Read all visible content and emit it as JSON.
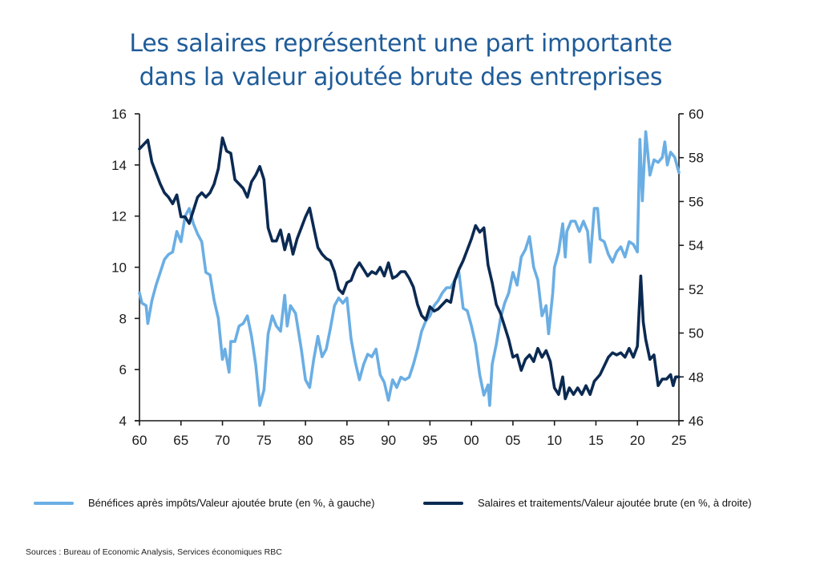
{
  "title_lines": [
    "Les salaires représentent une part importante",
    "dans la valeur ajoutée brute des entreprises"
  ],
  "source": "Sources : Bureau of Economic Analysis, Services économiques RBC",
  "colors": {
    "profits": "#6aaee4",
    "wages": "#0b2a52",
    "title": "#1f5c99"
  },
  "chart_data": {
    "type": "line",
    "title": "Les salaires représentent une part importante dans la valeur ajoutée brute des entreprises",
    "xlabel": "",
    "x_range": [
      1960,
      2025
    ],
    "x_ticks": [
      1960,
      1965,
      1970,
      1975,
      1980,
      1985,
      1990,
      1995,
      2000,
      2005,
      2010,
      2015,
      2020,
      2025
    ],
    "x_tick_labels": [
      "60",
      "65",
      "70",
      "75",
      "80",
      "85",
      "90",
      "95",
      "00",
      "05",
      "10",
      "15",
      "20",
      "25"
    ],
    "y_left": {
      "label": "en %",
      "range": [
        4,
        16
      ],
      "ticks": [
        4,
        6,
        8,
        10,
        12,
        14,
        16
      ]
    },
    "y_right": {
      "label": "en %",
      "range": [
        46,
        60
      ],
      "ticks": [
        46,
        48,
        50,
        52,
        54,
        56,
        58,
        60
      ]
    },
    "grid": false,
    "legend_position": "bottom",
    "series": [
      {
        "name": "Bénéfices après impôts/Valeur ajoutée brute (en %, à gauche)",
        "axis": "left",
        "color": "#6aaee4",
        "points": [
          [
            1960,
            9.0
          ],
          [
            1960.3,
            8.6
          ],
          [
            1960.8,
            8.5
          ],
          [
            1961,
            7.8
          ],
          [
            1961.5,
            8.7
          ],
          [
            1962,
            9.3
          ],
          [
            1962.5,
            9.8
          ],
          [
            1963,
            10.3
          ],
          [
            1963.5,
            10.5
          ],
          [
            1964,
            10.6
          ],
          [
            1964.5,
            11.4
          ],
          [
            1965,
            11.0
          ],
          [
            1965.5,
            12.0
          ],
          [
            1966,
            12.3
          ],
          [
            1966.5,
            11.7
          ],
          [
            1967,
            11.3
          ],
          [
            1967.5,
            11.0
          ],
          [
            1968,
            9.8
          ],
          [
            1968.5,
            9.7
          ],
          [
            1969,
            8.7
          ],
          [
            1969.5,
            8.0
          ],
          [
            1970,
            6.4
          ],
          [
            1970.3,
            6.8
          ],
          [
            1970.8,
            5.9
          ],
          [
            1971,
            7.1
          ],
          [
            1971.5,
            7.1
          ],
          [
            1972,
            7.7
          ],
          [
            1972.5,
            7.8
          ],
          [
            1973,
            8.1
          ],
          [
            1973.5,
            7.3
          ],
          [
            1974,
            6.2
          ],
          [
            1974.5,
            4.6
          ],
          [
            1975,
            5.2
          ],
          [
            1975.5,
            7.4
          ],
          [
            1976,
            8.1
          ],
          [
            1976.5,
            7.7
          ],
          [
            1977,
            7.5
          ],
          [
            1977.5,
            8.9
          ],
          [
            1977.8,
            7.7
          ],
          [
            1978.2,
            8.5
          ],
          [
            1978.8,
            8.2
          ],
          [
            1979.5,
            6.8
          ],
          [
            1980,
            5.6
          ],
          [
            1980.5,
            5.3
          ],
          [
            1981,
            6.4
          ],
          [
            1981.5,
            7.3
          ],
          [
            1982,
            6.5
          ],
          [
            1982.5,
            6.8
          ],
          [
            1983,
            7.6
          ],
          [
            1983.5,
            8.5
          ],
          [
            1984,
            8.8
          ],
          [
            1984.5,
            8.6
          ],
          [
            1985,
            8.8
          ],
          [
            1985.5,
            7.2
          ],
          [
            1986,
            6.3
          ],
          [
            1986.5,
            5.6
          ],
          [
            1987,
            6.2
          ],
          [
            1987.5,
            6.6
          ],
          [
            1988,
            6.5
          ],
          [
            1988.5,
            6.8
          ],
          [
            1989,
            5.8
          ],
          [
            1989.5,
            5.5
          ],
          [
            1990,
            4.8
          ],
          [
            1990.5,
            5.6
          ],
          [
            1991,
            5.3
          ],
          [
            1991.5,
            5.7
          ],
          [
            1992,
            5.6
          ],
          [
            1992.5,
            5.7
          ],
          [
            1993,
            6.2
          ],
          [
            1993.5,
            6.8
          ],
          [
            1994,
            7.5
          ],
          [
            1994.5,
            7.9
          ],
          [
            1995,
            8.1
          ],
          [
            1995.5,
            8.5
          ],
          [
            1996,
            8.7
          ],
          [
            1996.5,
            9.0
          ],
          [
            1997,
            9.2
          ],
          [
            1997.5,
            9.2
          ],
          [
            1998,
            9.5
          ],
          [
            1998.5,
            9.8
          ],
          [
            1999,
            8.4
          ],
          [
            1999.5,
            8.3
          ],
          [
            2000,
            7.7
          ],
          [
            2000.5,
            7.0
          ],
          [
            2001,
            5.8
          ],
          [
            2001.5,
            5.0
          ],
          [
            2002,
            5.4
          ],
          [
            2002.2,
            4.6
          ],
          [
            2002.5,
            6.2
          ],
          [
            2003,
            7.0
          ],
          [
            2003.5,
            8.0
          ],
          [
            2004,
            8.6
          ],
          [
            2004.5,
            9.0
          ],
          [
            2005,
            9.8
          ],
          [
            2005.5,
            9.3
          ],
          [
            2006,
            10.4
          ],
          [
            2006.5,
            10.7
          ],
          [
            2007,
            11.2
          ],
          [
            2007.5,
            10.0
          ],
          [
            2008,
            9.5
          ],
          [
            2008.5,
            8.1
          ],
          [
            2009,
            8.5
          ],
          [
            2009.3,
            7.4
          ],
          [
            2009.8,
            9.0
          ],
          [
            2010,
            10.0
          ],
          [
            2010.5,
            10.6
          ],
          [
            2011,
            11.7
          ],
          [
            2011.3,
            10.4
          ],
          [
            2011.5,
            11.4
          ],
          [
            2012,
            11.8
          ],
          [
            2012.5,
            11.8
          ],
          [
            2013,
            11.4
          ],
          [
            2013.5,
            11.8
          ],
          [
            2014,
            11.4
          ],
          [
            2014.3,
            10.2
          ],
          [
            2014.8,
            12.3
          ],
          [
            2015.2,
            12.3
          ],
          [
            2015.5,
            11.1
          ],
          [
            2016,
            11.0
          ],
          [
            2016.5,
            10.5
          ],
          [
            2017,
            10.2
          ],
          [
            2017.5,
            10.6
          ],
          [
            2018,
            10.8
          ],
          [
            2018.5,
            10.4
          ],
          [
            2019,
            11.0
          ],
          [
            2019.5,
            10.9
          ],
          [
            2020,
            10.6
          ],
          [
            2020.3,
            15.0
          ],
          [
            2020.6,
            12.6
          ],
          [
            2021,
            15.3
          ],
          [
            2021.5,
            13.6
          ],
          [
            2022,
            14.2
          ],
          [
            2022.5,
            14.1
          ],
          [
            2023,
            14.3
          ],
          [
            2023.3,
            14.9
          ],
          [
            2023.6,
            14.0
          ],
          [
            2024,
            14.5
          ],
          [
            2024.5,
            14.3
          ],
          [
            2025,
            13.7
          ]
        ]
      },
      {
        "name": "Salaires et traitements/Valeur ajoutée brute (en %, à droite)",
        "axis": "right",
        "color": "#0b2a52",
        "points": [
          [
            1960,
            58.4
          ],
          [
            1960.5,
            58.6
          ],
          [
            1961,
            58.8
          ],
          [
            1961.5,
            57.8
          ],
          [
            1962,
            57.3
          ],
          [
            1962.5,
            56.8
          ],
          [
            1963,
            56.4
          ],
          [
            1963.5,
            56.2
          ],
          [
            1964,
            55.9
          ],
          [
            1964.5,
            56.3
          ],
          [
            1965,
            55.3
          ],
          [
            1965.5,
            55.3
          ],
          [
            1966,
            55.0
          ],
          [
            1966.5,
            55.6
          ],
          [
            1967,
            56.2
          ],
          [
            1967.5,
            56.4
          ],
          [
            1968,
            56.2
          ],
          [
            1968.5,
            56.4
          ],
          [
            1969,
            56.8
          ],
          [
            1969.5,
            57.5
          ],
          [
            1970,
            58.9
          ],
          [
            1970.5,
            58.3
          ],
          [
            1971,
            58.2
          ],
          [
            1971.5,
            57.0
          ],
          [
            1972,
            56.8
          ],
          [
            1972.5,
            56.6
          ],
          [
            1973,
            56.2
          ],
          [
            1973.5,
            56.9
          ],
          [
            1974,
            57.2
          ],
          [
            1974.5,
            57.6
          ],
          [
            1975,
            57.0
          ],
          [
            1975.5,
            54.8
          ],
          [
            1976,
            54.2
          ],
          [
            1976.5,
            54.2
          ],
          [
            1977,
            54.7
          ],
          [
            1977.5,
            53.8
          ],
          [
            1978,
            54.5
          ],
          [
            1978.5,
            53.6
          ],
          [
            1979,
            54.3
          ],
          [
            1979.5,
            54.8
          ],
          [
            1980,
            55.3
          ],
          [
            1980.5,
            55.7
          ],
          [
            1981,
            54.8
          ],
          [
            1981.5,
            53.9
          ],
          [
            1982,
            53.6
          ],
          [
            1982.5,
            53.4
          ],
          [
            1983,
            53.3
          ],
          [
            1983.5,
            52.8
          ],
          [
            1984,
            52.0
          ],
          [
            1984.5,
            51.8
          ],
          [
            1985,
            52.3
          ],
          [
            1985.5,
            52.4
          ],
          [
            1986,
            52.9
          ],
          [
            1986.5,
            53.2
          ],
          [
            1987,
            52.9
          ],
          [
            1987.5,
            52.6
          ],
          [
            1988,
            52.8
          ],
          [
            1988.5,
            52.7
          ],
          [
            1989,
            53.0
          ],
          [
            1989.5,
            52.6
          ],
          [
            1990,
            53.2
          ],
          [
            1990.5,
            52.5
          ],
          [
            1991,
            52.6
          ],
          [
            1991.5,
            52.8
          ],
          [
            1992,
            52.8
          ],
          [
            1992.5,
            52.5
          ],
          [
            1993,
            52.1
          ],
          [
            1993.5,
            51.3
          ],
          [
            1994,
            50.8
          ],
          [
            1994.5,
            50.6
          ],
          [
            1995,
            51.2
          ],
          [
            1995.5,
            51.0
          ],
          [
            1996,
            51.1
          ],
          [
            1996.5,
            51.3
          ],
          [
            1997,
            51.5
          ],
          [
            1997.5,
            51.4
          ],
          [
            1998,
            52.4
          ],
          [
            1998.5,
            52.9
          ],
          [
            1999,
            53.3
          ],
          [
            1999.5,
            53.8
          ],
          [
            2000,
            54.3
          ],
          [
            2000.5,
            54.9
          ],
          [
            2001,
            54.6
          ],
          [
            2001.5,
            54.8
          ],
          [
            2002,
            53.1
          ],
          [
            2002.5,
            52.3
          ],
          [
            2003,
            51.3
          ],
          [
            2003.5,
            50.9
          ],
          [
            2004,
            50.3
          ],
          [
            2004.5,
            49.7
          ],
          [
            2005,
            48.9
          ],
          [
            2005.5,
            49.0
          ],
          [
            2006,
            48.3
          ],
          [
            2006.5,
            48.8
          ],
          [
            2007,
            49.0
          ],
          [
            2007.5,
            48.7
          ],
          [
            2008,
            49.3
          ],
          [
            2008.5,
            48.9
          ],
          [
            2009,
            49.2
          ],
          [
            2009.5,
            48.7
          ],
          [
            2010,
            47.5
          ],
          [
            2010.5,
            47.2
          ],
          [
            2011,
            48.0
          ],
          [
            2011.3,
            47.0
          ],
          [
            2011.8,
            47.5
          ],
          [
            2012.3,
            47.2
          ],
          [
            2012.8,
            47.5
          ],
          [
            2013.3,
            47.2
          ],
          [
            2013.8,
            47.6
          ],
          [
            2014.3,
            47.2
          ],
          [
            2014.8,
            47.8
          ],
          [
            2015.5,
            48.1
          ],
          [
            2016,
            48.5
          ],
          [
            2016.5,
            48.9
          ],
          [
            2017,
            49.1
          ],
          [
            2017.5,
            49.0
          ],
          [
            2018,
            49.1
          ],
          [
            2018.5,
            48.9
          ],
          [
            2019,
            49.3
          ],
          [
            2019.5,
            48.9
          ],
          [
            2020,
            49.4
          ],
          [
            2020.4,
            52.6
          ],
          [
            2020.7,
            50.5
          ],
          [
            2021,
            49.7
          ],
          [
            2021.5,
            48.8
          ],
          [
            2022,
            49.0
          ],
          [
            2022.5,
            47.6
          ],
          [
            2023,
            47.9
          ],
          [
            2023.5,
            47.9
          ],
          [
            2024,
            48.1
          ],
          [
            2024.3,
            47.6
          ],
          [
            2024.6,
            48.0
          ],
          [
            2025,
            48.0
          ]
        ]
      }
    ]
  },
  "legend": [
    {
      "label": "Bénéfices après impôts/Valeur ajoutée brute (en %, à gauche)"
    },
    {
      "label": "Salaires et traitements/Valeur ajoutée brute (en %, à droite)"
    }
  ]
}
